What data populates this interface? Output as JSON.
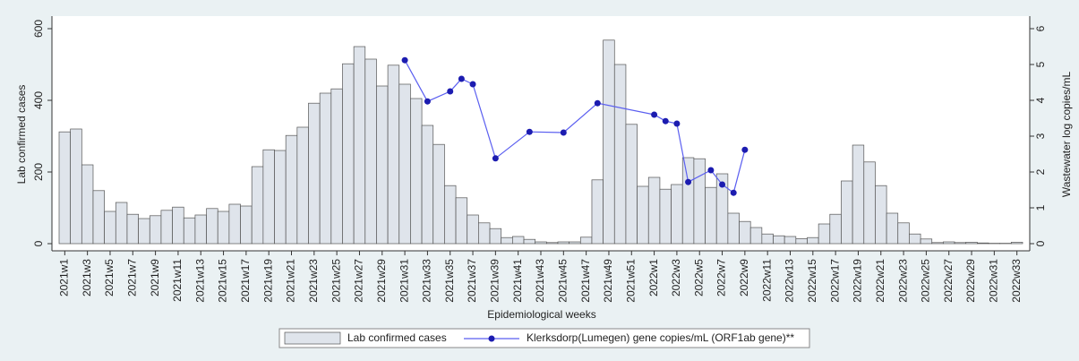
{
  "chart_data": {
    "type": "bar",
    "xlabel": "Epidemiological weeks",
    "ylabel": "Lab confirmed cases",
    "y2label": "Wastewater log copies/mL",
    "categories": [
      "2021w1",
      null,
      "2021w3",
      null,
      "2021w5",
      null,
      "2021w7",
      null,
      "2021w9",
      null,
      "2021w11",
      null,
      "2021w13",
      null,
      "2021w15",
      null,
      "2021w17",
      null,
      "2021w19",
      null,
      "2021w21",
      null,
      "2021w23",
      null,
      "2021w25",
      null,
      "2021w27",
      null,
      "2021w29",
      null,
      "2021w31",
      null,
      "2021w33",
      null,
      "2021w35",
      null,
      "2021w37",
      null,
      "2021w39",
      null,
      "2021w41",
      null,
      "2021w43",
      null,
      "2021w45",
      null,
      "2021w47",
      null,
      "2021w49",
      null,
      "2021w51",
      null,
      "2022w1",
      null,
      "2022w3",
      null,
      "2022w5",
      null,
      "2022w7",
      null,
      "2022w9",
      null,
      "2022w11",
      null,
      "2022w13",
      null,
      "2022w15",
      null,
      "2022w17",
      null,
      "2022w19",
      null,
      "2022w21",
      null,
      "2022w23",
      null,
      "2022w25",
      null,
      "2022w27",
      null,
      "2022w29",
      null,
      "2022w31",
      null,
      "2022w33"
    ],
    "series": [
      {
        "name": "Lab confirmed cases",
        "type": "bar",
        "color": "#dfe4eb",
        "edge": "#555555",
        "values": [
          312,
          320,
          220,
          148,
          90,
          115,
          82,
          70,
          78,
          93,
          102,
          72,
          80,
          98,
          90,
          110,
          105,
          215,
          262,
          260,
          302,
          325,
          392,
          420,
          432,
          502,
          550,
          515,
          440,
          498,
          445,
          405,
          330,
          277,
          162,
          128,
          80,
          58,
          42,
          17,
          20,
          12,
          5,
          3,
          5,
          5,
          18,
          178,
          568,
          500,
          333,
          160,
          185,
          152,
          165,
          240,
          237,
          157,
          195,
          85,
          62,
          45,
          27,
          22,
          20,
          14,
          17,
          55,
          82,
          175,
          275,
          228,
          162,
          85,
          58,
          27,
          13,
          3,
          5,
          3,
          4,
          2,
          1,
          1,
          4
        ]
      },
      {
        "name": "Klerksdorp(Lumegen) gene copies/mL (ORF1ab gene)**",
        "type": "line",
        "axis": "y2",
        "color": "#5a5ef0",
        "marker_color": "#1c1cb0",
        "connect_gaps": true,
        "values": [
          null,
          null,
          null,
          null,
          null,
          null,
          null,
          null,
          null,
          null,
          null,
          null,
          null,
          null,
          null,
          null,
          null,
          null,
          null,
          null,
          null,
          null,
          null,
          null,
          null,
          null,
          null,
          null,
          null,
          null,
          5.12,
          null,
          3.97,
          null,
          4.25,
          4.6,
          4.45,
          null,
          2.38,
          null,
          null,
          3.12,
          null,
          null,
          3.1,
          null,
          null,
          3.92,
          null,
          null,
          null,
          null,
          3.6,
          3.42,
          3.35,
          1.72,
          null,
          2.05,
          1.65,
          1.42,
          2.62,
          null,
          null,
          null,
          null,
          null,
          null,
          null,
          null,
          null,
          null,
          null,
          null,
          null,
          null,
          null,
          null,
          null,
          null,
          null,
          null,
          null,
          null,
          null,
          null
        ]
      }
    ],
    "ylim": [
      0,
      600
    ],
    "yticks": [
      0,
      200,
      400,
      600
    ],
    "y2lim": [
      0,
      6
    ],
    "y2ticks": [
      0,
      1,
      2,
      3,
      4,
      5,
      6
    ],
    "grid": false,
    "legend": "bottom"
  }
}
